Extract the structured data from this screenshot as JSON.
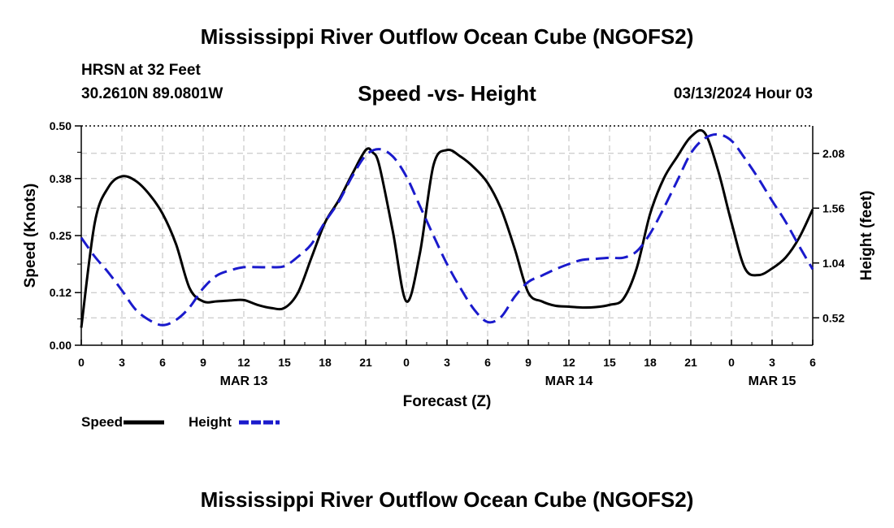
{
  "header": {
    "main_title": "Mississippi River Outflow Ocean Cube (NGOFS2)",
    "station_name": "HRSN at 32 Feet",
    "coordinates": "30.2610N  89.0801W",
    "chart_title": "Speed -vs- Height",
    "run_time": "03/13/2024 Hour 03",
    "bottom_title": "Mississippi River Outflow Ocean Cube (NGOFS2)"
  },
  "chart_data": {
    "type": "line",
    "title": "Speed -vs- Height",
    "xlabel": "Forecast (Z)",
    "ylabel": "Speed (Knots)",
    "y2label": "Height (feet)",
    "xlim": [
      0,
      54
    ],
    "ylim": [
      0,
      0.5
    ],
    "y2lim": [
      0.26,
      2.34
    ],
    "grid": true,
    "x_ticks": [
      0,
      3,
      6,
      9,
      12,
      15,
      18,
      21,
      24,
      27,
      30,
      33,
      36,
      39,
      42,
      45,
      48,
      51,
      54
    ],
    "x_tick_labels": [
      "0",
      "3",
      "6",
      "9",
      "12",
      "15",
      "18",
      "21",
      "0",
      "3",
      "6",
      "9",
      "12",
      "15",
      "18",
      "21",
      "0",
      "3",
      "6"
    ],
    "date_labels": [
      {
        "label": "MAR 13",
        "x": 12
      },
      {
        "label": "MAR 14",
        "x": 36
      },
      {
        "label": "MAR 15",
        "x": 51
      }
    ],
    "y_ticks": [
      0.0,
      0.12,
      0.25,
      0.38,
      0.5
    ],
    "y_tick_labels": [
      "0.00",
      "0.12",
      "0.25",
      "0.38",
      "0.50"
    ],
    "y2_ticks": [
      0.52,
      1.04,
      1.56,
      2.08
    ],
    "y2_tick_labels": [
      "0.52",
      "1.04",
      "1.56",
      "2.08"
    ],
    "series": [
      {
        "name": "Speed",
        "axis": "left",
        "color": "#000000",
        "dash": "solid",
        "x": [
          0,
          1,
          2,
          3,
          4,
          5,
          6,
          7,
          8,
          9,
          10,
          11,
          12,
          13,
          14,
          15,
          16,
          17,
          18,
          19,
          20,
          21,
          21.5,
          22,
          23,
          24,
          25,
          26,
          27,
          28,
          29,
          30,
          31,
          32,
          33,
          34,
          35,
          36,
          37,
          38,
          39,
          40,
          41,
          42,
          43,
          44,
          45,
          46,
          47,
          48,
          49,
          50,
          51,
          52,
          53,
          54
        ],
        "values": [
          0.04,
          0.28,
          0.36,
          0.385,
          0.375,
          0.345,
          0.3,
          0.23,
          0.13,
          0.1,
          0.1,
          0.102,
          0.103,
          0.092,
          0.085,
          0.085,
          0.12,
          0.2,
          0.28,
          0.33,
          0.39,
          0.445,
          0.44,
          0.41,
          0.26,
          0.1,
          0.21,
          0.41,
          0.445,
          0.43,
          0.405,
          0.37,
          0.31,
          0.22,
          0.12,
          0.1,
          0.09,
          0.088,
          0.086,
          0.087,
          0.092,
          0.105,
          0.175,
          0.3,
          0.38,
          0.43,
          0.475,
          0.485,
          0.4,
          0.28,
          0.175,
          0.16,
          0.175,
          0.2,
          0.245,
          0.31
        ]
      },
      {
        "name": "Height",
        "axis": "right",
        "color": "#1a1acc",
        "dash": "dashed",
        "x": [
          0,
          1,
          2,
          3,
          4,
          5,
          6,
          7,
          8,
          9,
          10,
          11,
          12,
          13,
          14,
          15,
          16,
          17,
          18,
          19,
          20,
          21,
          22,
          23,
          24,
          25,
          26,
          27,
          28,
          29,
          30,
          31,
          32,
          33,
          34,
          35,
          36,
          37,
          38,
          39,
          40,
          41,
          42,
          43,
          44,
          45,
          46,
          47,
          48,
          49,
          50,
          51,
          52,
          53,
          54
        ],
        "values": [
          1.28,
          1.1,
          0.95,
          0.78,
          0.6,
          0.5,
          0.45,
          0.5,
          0.62,
          0.8,
          0.92,
          0.97,
          1.0,
          1.0,
          1.0,
          1.01,
          1.1,
          1.22,
          1.43,
          1.62,
          1.86,
          2.06,
          2.12,
          2.05,
          1.86,
          1.58,
          1.3,
          1.03,
          0.8,
          0.6,
          0.48,
          0.53,
          0.72,
          0.86,
          0.92,
          0.98,
          1.03,
          1.07,
          1.08,
          1.09,
          1.09,
          1.15,
          1.32,
          1.56,
          1.82,
          2.08,
          2.22,
          2.26,
          2.2,
          2.03,
          1.84,
          1.63,
          1.43,
          1.2,
          0.98
        ]
      }
    ],
    "legend": {
      "position": "bottom-left",
      "items": [
        {
          "label": "Speed",
          "color": "#000000",
          "dash": "solid"
        },
        {
          "label": "Height",
          "color": "#1a1acc",
          "dash": "dashed"
        }
      ]
    }
  }
}
